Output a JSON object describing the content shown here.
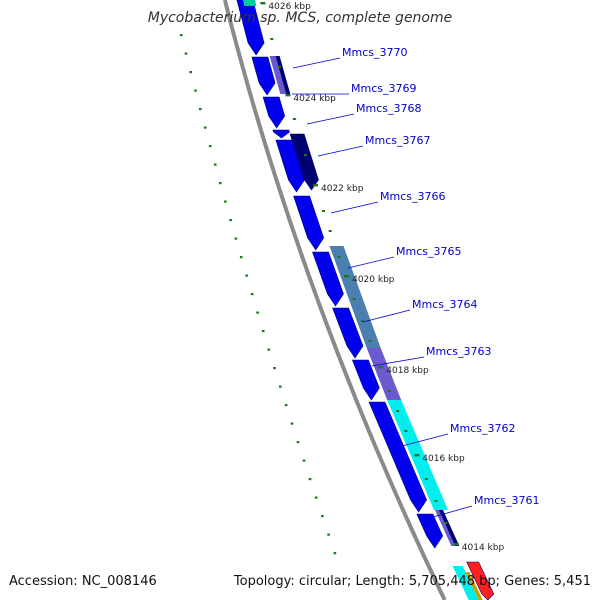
{
  "title": "Mycobacterium sp. MCS, complete genome",
  "accession_text": "Accession: NC_008146",
  "summary_text": "Topology: circular; Length: 5,705,448 bp; Genes: 5,451",
  "colors": {
    "backbone": "#8a8a8a",
    "gene_forward": "#0000ee",
    "gene_outline": "#000080",
    "label_link": "#0000cc",
    "tick": "#1a7a1a",
    "dark_navy": "#000070",
    "steel_blue": "#4a7fb0",
    "violet": "#6a5acd",
    "cyan": "#00eeee",
    "red": "#ff2020"
  },
  "kbp_ticks": [
    "4026 kbp",
    "4024 kbp",
    "4022 kbp",
    "4020 kbp",
    "4018 kbp",
    "4016 kbp",
    "4014 kbp"
  ],
  "genes": [
    "Mmcs_3770",
    "Mmcs_3769",
    "Mmcs_3768",
    "Mmcs_3767",
    "Mmcs_3766",
    "Mmcs_3765",
    "Mmcs_3764",
    "Mmcs_3763",
    "Mmcs_3762",
    "Mmcs_3761"
  ]
}
